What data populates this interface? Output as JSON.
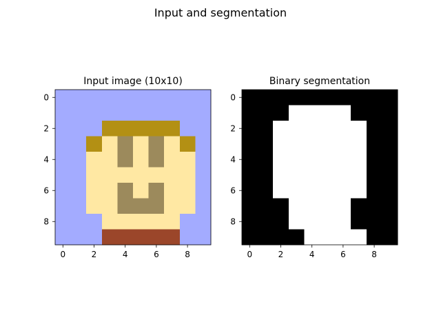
{
  "figure": {
    "suptitle": "Input and segmentation"
  },
  "chart_data": [
    {
      "type": "heatmap",
      "title": "Input image (10x10)",
      "xlabel": "",
      "ylabel": "",
      "xticks": [
        0,
        2,
        4,
        6,
        8
      ],
      "yticks": [
        0,
        2,
        4,
        6,
        8
      ],
      "xlim": [
        -0.5,
        9.5
      ],
      "ylim": [
        9.5,
        -0.5
      ],
      "palette": {
        "B": "#a3abff",
        "H": "#b39014",
        "S": "#ffe8a3",
        "E": "#9c8a5c",
        "R": "#9b462a"
      },
      "grid": [
        "BBBBBBBBBB",
        "BBBBBBBBBB",
        "BBBHHHHHBB",
        "BBHSESESHB",
        "BBSSESESSB",
        "BBSSSSSSSB",
        "BBSSESESSB",
        "BBSSEEESSB",
        "BBBSSSSSBB",
        "BBBRRRRRBB"
      ]
    },
    {
      "type": "heatmap",
      "title": "Binary segmentation",
      "xlabel": "",
      "ylabel": "",
      "xticks": [
        0,
        2,
        4,
        6,
        8
      ],
      "yticks": [
        0,
        2,
        4,
        6,
        8
      ],
      "xlim": [
        -0.5,
        9.5
      ],
      "ylim": [
        9.5,
        -0.5
      ],
      "palette": {
        "0": "#000000",
        "1": "#ffffff"
      },
      "grid": [
        "0000000000",
        "0001111000",
        "0011111100",
        "0011111100",
        "0011111100",
        "0011111100",
        "0011111100",
        "0001111000",
        "0001111000",
        "0000111100"
      ]
    }
  ]
}
